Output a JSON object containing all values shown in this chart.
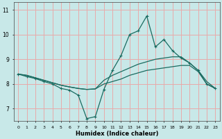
{
  "xlabel": "Humidex (Indice chaleur)",
  "xlim_left": -0.5,
  "xlim_right": 23.5,
  "ylim_bottom": 6.5,
  "ylim_top": 11.3,
  "xticks": [
    0,
    1,
    2,
    3,
    4,
    5,
    6,
    7,
    8,
    9,
    10,
    11,
    12,
    13,
    14,
    15,
    16,
    17,
    18,
    19,
    20,
    21,
    22,
    23
  ],
  "yticks": [
    7,
    8,
    9,
    10,
    11
  ],
  "bg_color": "#c8e8e8",
  "grid_color": "#e8aaaa",
  "line_color": "#1a6b60",
  "smooth_line1_y": [
    8.4,
    8.35,
    8.25,
    8.15,
    8.05,
    7.95,
    7.88,
    7.82,
    7.78,
    7.8,
    8.0,
    8.1,
    8.2,
    8.35,
    8.45,
    8.55,
    8.6,
    8.65,
    8.7,
    8.75,
    8.75,
    8.5,
    8.0,
    7.82
  ],
  "smooth_line2_y": [
    8.4,
    8.35,
    8.25,
    8.15,
    8.05,
    7.95,
    7.88,
    7.82,
    7.78,
    7.8,
    8.15,
    8.35,
    8.5,
    8.65,
    8.8,
    8.9,
    9.0,
    9.05,
    9.1,
    9.1,
    8.85,
    8.55,
    8.1,
    7.82
  ],
  "jagged_line_y": [
    8.4,
    8.3,
    8.22,
    8.1,
    8.0,
    7.82,
    7.75,
    7.55,
    6.6,
    6.68,
    7.78,
    8.55,
    9.15,
    10.0,
    10.15,
    10.75,
    9.5,
    9.8,
    9.35,
    9.05,
    8.85,
    8.55,
    8.0,
    7.82
  ]
}
